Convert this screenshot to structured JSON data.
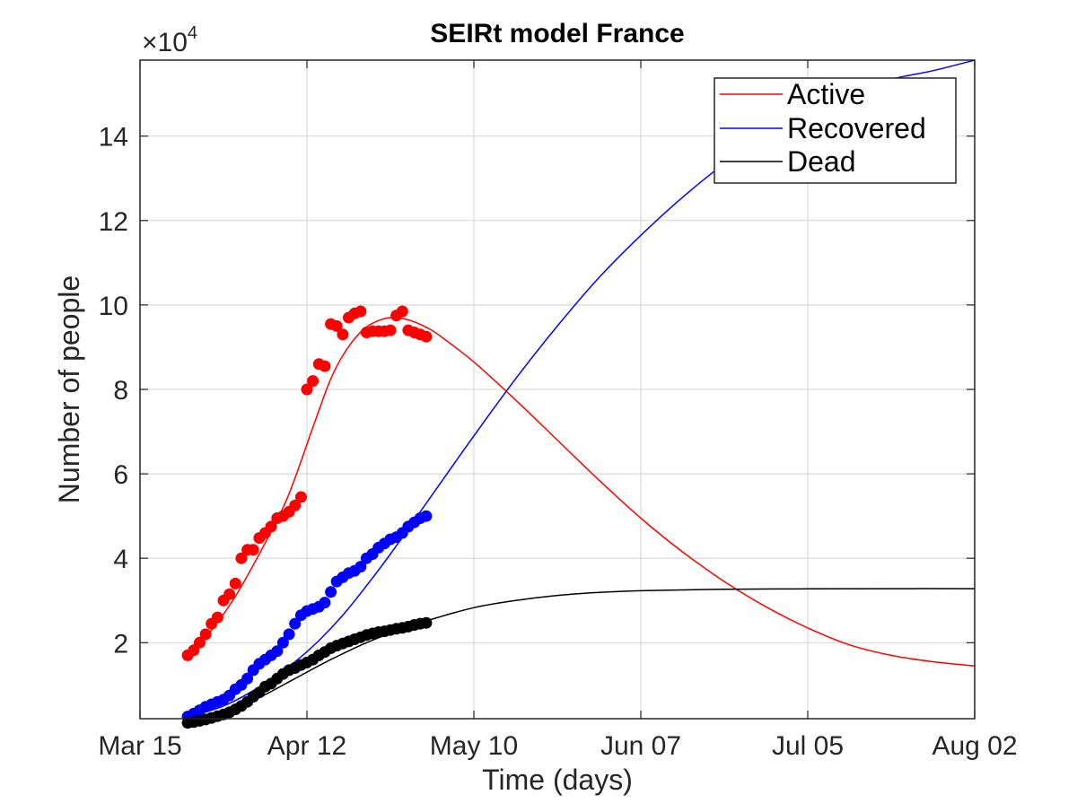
{
  "chart_data": {
    "type": "line",
    "title": "SEIRt model France",
    "xlabel": "Time (days)",
    "ylabel": "Number of people",
    "y_exponent_label": "×10",
    "y_exponent_power": "4",
    "x_tick_labels": [
      "Mar 15",
      "Apr 12",
      "May 10",
      "Jun 07",
      "Jul 05",
      "Aug 02"
    ],
    "x_tick_values": [
      0,
      28,
      56,
      84,
      112,
      140
    ],
    "y_tick_labels": [
      "2",
      "4",
      "6",
      "8",
      "10",
      "12",
      "14"
    ],
    "y_tick_values": [
      20000,
      40000,
      60000,
      80000,
      100000,
      120000,
      140000
    ],
    "xlim": [
      0,
      140
    ],
    "ylim": [
      2000,
      158000
    ],
    "grid": true,
    "legend_position": "top-right",
    "colors": {
      "active": "#ff0000",
      "recovered": "#0000ff",
      "dead": "#000000",
      "grid": "#d9d9d9",
      "axis": "#262626"
    },
    "model_series": [
      {
        "name": "Active",
        "key": "active",
        "x": [
          8,
          12,
          16,
          20,
          24,
          26,
          28,
          30,
          32,
          34,
          36,
          38,
          40,
          42,
          44,
          46,
          48,
          50,
          56,
          63,
          70,
          77,
          84,
          91,
          98,
          105,
          112,
          119,
          126,
          133,
          140
        ],
        "y": [
          17000,
          23000,
          31000,
          41000,
          52000,
          59000,
          67000,
          75000,
          82500,
          88000,
          92000,
          94800,
          96300,
          97000,
          96800,
          96000,
          94700,
          93000,
          86500,
          77500,
          68000,
          58500,
          49500,
          41500,
          34500,
          28500,
          23500,
          19500,
          17000,
          15500,
          14500
        ]
      },
      {
        "name": "Recovered",
        "key": "recovered",
        "x": [
          8,
          14,
          20,
          26,
          30,
          34,
          38,
          42,
          46,
          50,
          56,
          63,
          70,
          77,
          84,
          91,
          98,
          105,
          112,
          119,
          126,
          133,
          140
        ],
        "y": [
          2500,
          5000,
          9500,
          15500,
          20500,
          26500,
          33500,
          41000,
          49000,
          57000,
          69000,
          82500,
          95000,
          106500,
          116500,
          125500,
          133500,
          140500,
          146500,
          150500,
          153500,
          155500,
          158000
        ]
      },
      {
        "name": "Dead",
        "key": "dead",
        "x": [
          8,
          14,
          20,
          26,
          32,
          38,
          44,
          50,
          56,
          63,
          70,
          77,
          84,
          91,
          98,
          112,
          126,
          140
        ],
        "y": [
          1500,
          3500,
          7000,
          11500,
          16000,
          20000,
          23300,
          26000,
          28300,
          30000,
          31200,
          31900,
          32300,
          32500,
          32650,
          32750,
          32800,
          32800
        ]
      }
    ],
    "observed_series": [
      {
        "key": "active",
        "x": [
          8,
          9,
          10,
          11,
          12,
          13,
          14,
          15,
          16,
          17,
          18,
          19,
          20,
          21,
          22,
          23,
          24,
          25,
          26,
          27,
          28,
          29,
          30,
          31,
          32,
          33,
          34,
          35,
          36,
          37,
          38,
          39,
          40,
          41,
          42,
          43,
          44,
          45,
          46,
          47,
          48
        ],
        "y": [
          17000,
          18200,
          20000,
          22000,
          24500,
          26000,
          30000,
          31500,
          34000,
          40000,
          42000,
          42000,
          44800,
          46000,
          47500,
          49500,
          50000,
          51000,
          52500,
          54500,
          80000,
          82000,
          86000,
          85500,
          95500,
          95000,
          93000,
          97000,
          98000,
          98500,
          93500,
          93800,
          93800,
          93800,
          94000,
          97500,
          98500,
          94000,
          93500,
          93000,
          92500
        ]
      },
      {
        "key": "recovered",
        "x": [
          8,
          9,
          10,
          11,
          12,
          13,
          14,
          15,
          16,
          17,
          18,
          19,
          20,
          21,
          22,
          23,
          24,
          25,
          26,
          27,
          28,
          29,
          30,
          31,
          32,
          33,
          34,
          35,
          36,
          37,
          38,
          39,
          40,
          41,
          42,
          43,
          44,
          45,
          46,
          47,
          48
        ],
        "y": [
          2500,
          3200,
          4000,
          4800,
          5400,
          6000,
          6500,
          7500,
          9000,
          10000,
          11500,
          13500,
          15000,
          16000,
          17000,
          18000,
          20000,
          22000,
          24500,
          26500,
          27500,
          28000,
          28500,
          29500,
          32000,
          34500,
          35500,
          36500,
          37000,
          38000,
          40000,
          41000,
          42500,
          43500,
          44500,
          45000,
          46000,
          47500,
          48500,
          49500,
          50000
        ]
      },
      {
        "key": "dead",
        "x": [
          8,
          9,
          10,
          11,
          12,
          13,
          14,
          15,
          16,
          17,
          18,
          19,
          20,
          21,
          22,
          23,
          24,
          25,
          26,
          27,
          28,
          29,
          30,
          31,
          32,
          33,
          34,
          35,
          36,
          37,
          38,
          39,
          40,
          41,
          42,
          43,
          44,
          45,
          46,
          47,
          48
        ],
        "y": [
          1000,
          1200,
          1500,
          1800,
          2200,
          2600,
          3000,
          3500,
          4200,
          5000,
          6000,
          7200,
          8200,
          9600,
          10300,
          11500,
          12600,
          13500,
          14000,
          14700,
          15300,
          16000,
          17000,
          17800,
          18700,
          19300,
          19800,
          20300,
          20800,
          21300,
          21800,
          22200,
          22500,
          22700,
          23000,
          23300,
          23500,
          23800,
          24200,
          24500,
          24700
        ]
      }
    ]
  }
}
